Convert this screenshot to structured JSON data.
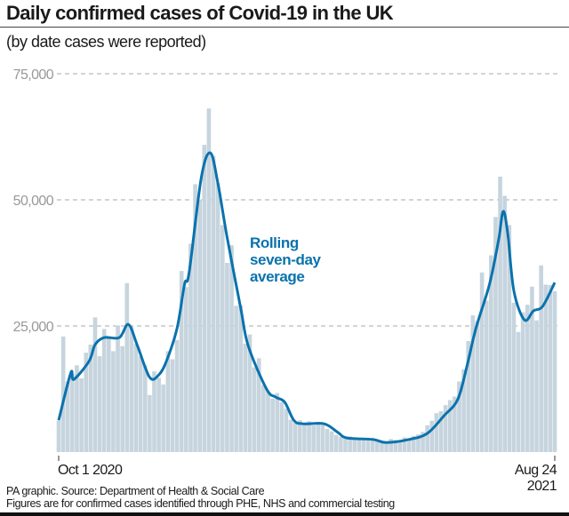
{
  "chart_data": {
    "type": "bar",
    "title": "Daily confirmed cases of Covid-19 in the UK",
    "subtitle": "(by date cases were reported)",
    "ylim": [
      0,
      75000
    ],
    "y_ticks": [
      {
        "value": 75000,
        "label": "75,000"
      },
      {
        "value": 50000,
        "label": "50,000"
      },
      {
        "value": 25000,
        "label": "25,000"
      }
    ],
    "grid": "horizontal dashed",
    "x_range": [
      "2020-10-01",
      "2021-08-24"
    ],
    "x_ticks": [
      {
        "date": "2020-10-01",
        "label": "Oct 1 2020"
      },
      {
        "date": "2021-08-24",
        "label": "Aug 24",
        "label2": "2021"
      }
    ],
    "daily_cases": {
      "start": "2020-10-01",
      "end": "2021-08-24",
      "values": [
        6200,
        22900,
        14000,
        15500,
        17200,
        14600,
        19700,
        21300,
        26700,
        19000,
        24400,
        22800,
        20000,
        25100,
        21000,
        33500,
        24900,
        21400,
        19000,
        17200,
        11300,
        16000,
        14700,
        13400,
        20000,
        18400,
        22200,
        35900,
        32700,
        41300,
        53100,
        50000,
        60900,
        68100,
        58700,
        53300,
        45000,
        37500,
        41000,
        29000,
        29100,
        21500,
        23300,
        16800,
        18600,
        13300,
        12000,
        10600,
        11700,
        9900,
        8600,
        6400,
        5800,
        6300,
        5500,
        6100,
        5300,
        6000,
        5400,
        4600,
        4100,
        3400,
        3000,
        2700,
        3100,
        2500,
        2600,
        2400,
        2700,
        2300,
        2500,
        2100,
        1800,
        2600,
        2400,
        2300,
        2900,
        2500,
        3200,
        3500,
        4000,
        5300,
        6200,
        7700,
        8100,
        9300,
        10300,
        11000,
        14000,
        16400,
        22000,
        27100,
        26000,
        35600,
        30000,
        39000,
        46600,
        54600,
        50800,
        45000,
        29600,
        23800,
        27700,
        29200,
        32800,
        26100,
        37000,
        33200,
        33100,
        31900
      ]
    },
    "rolling_average": {
      "label": [
        "Rolling",
        "seven-day",
        "average"
      ],
      "points": [
        [
          "2020-10-01",
          6300
        ],
        [
          "2020-10-09",
          15700
        ],
        [
          "2020-10-11",
          14400
        ],
        [
          "2020-10-21",
          18000
        ],
        [
          "2020-10-25",
          21300
        ],
        [
          "2020-10-31",
          22700
        ],
        [
          "2020-11-10",
          22700
        ],
        [
          "2020-11-16",
          25300
        ],
        [
          "2020-11-22",
          21000
        ],
        [
          "2020-11-30",
          14800
        ],
        [
          "2020-12-06",
          15300
        ],
        [
          "2020-12-11",
          18000
        ],
        [
          "2020-12-18",
          24500
        ],
        [
          "2020-12-23",
          33300
        ],
        [
          "2020-12-26",
          35600
        ],
        [
          "2021-01-03",
          54400
        ],
        [
          "2021-01-09",
          59300
        ],
        [
          "2021-01-14",
          53200
        ],
        [
          "2021-01-20",
          42600
        ],
        [
          "2021-01-29",
          28500
        ],
        [
          "2021-02-03",
          21000
        ],
        [
          "2021-02-15",
          12500
        ],
        [
          "2021-02-21",
          10900
        ],
        [
          "2021-02-27",
          9900
        ],
        [
          "2021-03-05",
          6300
        ],
        [
          "2021-03-11",
          5600
        ],
        [
          "2021-03-25",
          5600
        ],
        [
          "2021-04-03",
          3900
        ],
        [
          "2021-04-09",
          2800
        ],
        [
          "2021-04-26",
          2500
        ],
        [
          "2021-05-05",
          1900
        ],
        [
          "2021-05-20",
          2500
        ],
        [
          "2021-06-01",
          3700
        ],
        [
          "2021-06-12",
          7200
        ],
        [
          "2021-06-21",
          10400
        ],
        [
          "2021-06-27",
          16900
        ],
        [
          "2021-07-03",
          24500
        ],
        [
          "2021-07-12",
          33300
        ],
        [
          "2021-07-18",
          42100
        ],
        [
          "2021-07-21",
          47700
        ],
        [
          "2021-07-24",
          43300
        ],
        [
          "2021-07-28",
          32000
        ],
        [
          "2021-08-04",
          26200
        ],
        [
          "2021-08-10",
          28000
        ],
        [
          "2021-08-16",
          28900
        ],
        [
          "2021-08-24",
          33600
        ]
      ]
    },
    "colors": {
      "bars": "#c6d4de",
      "line": "#0a72ad",
      "grid": "#aaaaaa",
      "tick_labels": "#999999"
    }
  },
  "footer": {
    "source": "PA graphic. Source: Department of Health & Social Care",
    "note": "Figures are for confirmed cases identified through PHE, NHS and commercial testing"
  }
}
